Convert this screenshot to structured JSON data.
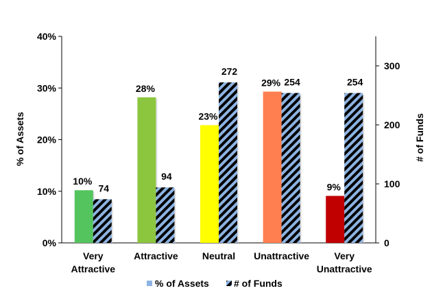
{
  "chart_data": {
    "type": "bar",
    "categories": [
      "Very Attractive",
      "Attractive",
      "Neutral",
      "Unattractive",
      "Very Unattractive"
    ],
    "category_lines": [
      [
        "Very",
        "Attractive"
      ],
      [
        "Attractive"
      ],
      [
        "Neutral"
      ],
      [
        "Unattractive"
      ],
      [
        "Very",
        "Unattractive"
      ]
    ],
    "series": [
      {
        "name": "% of Assets",
        "axis": "left",
        "values": [
          10.2,
          28.2,
          22.8,
          29.3,
          9.1
        ],
        "data_labels": [
          "10%",
          "28%",
          "23%",
          "29%",
          "9%"
        ],
        "colors": [
          "#54c45e",
          "#8cc63f",
          "#ffff00",
          "#ff7f50",
          "#c00000"
        ]
      },
      {
        "name": "# of Funds",
        "axis": "right",
        "values": [
          74,
          94,
          272,
          254,
          254
        ],
        "data_labels": [
          "74",
          "94",
          "272",
          "254",
          "254"
        ],
        "pattern": "diagonal-stripes",
        "colors": [
          "#8db3e2",
          "#000000"
        ]
      }
    ],
    "left_axis": {
      "title": "% of Assets",
      "ylim": [
        0,
        40
      ],
      "ticks": [
        0,
        10,
        20,
        30,
        40
      ],
      "tick_labels": [
        "0%",
        "10%",
        "20%",
        "30%",
        "40%"
      ]
    },
    "right_axis": {
      "title": "# of Funds",
      "ylim": [
        0,
        350
      ],
      "ticks": [
        0,
        100,
        200,
        300
      ],
      "tick_labels": [
        "0",
        "100",
        "200",
        "300"
      ]
    },
    "grid": false,
    "legend": "bottom"
  }
}
